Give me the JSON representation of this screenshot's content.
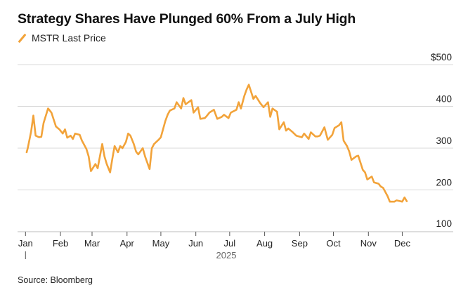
{
  "title": "Strategy Shares Have Plunged 60% From a July High",
  "source": "Source: Bloomberg",
  "colors": {
    "line": "#f2a33a",
    "grid": "#d9d9d9",
    "axis": "#555555"
  },
  "chart_data": {
    "type": "line",
    "title": "Strategy Shares Have Plunged 60% From a July High",
    "xlabel": "2025",
    "ylabel": "",
    "ylim": [
      100,
      500
    ],
    "y_ticks": [
      "$500",
      "400",
      "300",
      "200",
      "100"
    ],
    "y_tick_values": [
      500,
      400,
      300,
      200,
      100
    ],
    "x_tick_labels": [
      "Jan",
      "Feb",
      "Mar",
      "Apr",
      "May",
      "Jun",
      "Jul",
      "Aug",
      "Sep",
      "Oct",
      "Nov",
      "Dec"
    ],
    "x_year_label": "2025",
    "legend": "top-left",
    "grid": true,
    "series": [
      {
        "name": "MSTR Last Price",
        "color": "#f2a33a",
        "x": [
          "2025-01-02",
          "2025-01-03",
          "2025-01-06",
          "2025-01-08",
          "2025-01-10",
          "2025-01-13",
          "2025-01-15",
          "2025-01-17",
          "2025-01-21",
          "2025-01-22",
          "2025-01-24",
          "2025-01-28",
          "2025-01-31",
          "2025-02-03",
          "2025-02-05",
          "2025-02-07",
          "2025-02-10",
          "2025-02-12",
          "2025-02-14",
          "2025-02-18",
          "2025-02-20",
          "2025-02-24",
          "2025-02-26",
          "2025-02-28",
          "2025-03-04",
          "2025-03-06",
          "2025-03-10",
          "2025-03-12",
          "2025-03-14",
          "2025-03-17",
          "2025-03-19",
          "2025-03-21",
          "2025-03-24",
          "2025-03-26",
          "2025-03-28",
          "2025-03-31",
          "2025-04-02",
          "2025-04-04",
          "2025-04-07",
          "2025-04-09",
          "2025-04-11",
          "2025-04-15",
          "2025-04-17",
          "2025-04-21",
          "2025-04-23",
          "2025-04-25",
          "2025-04-29",
          "2025-05-01",
          "2025-05-05",
          "2025-05-07",
          "2025-05-09",
          "2025-05-13",
          "2025-05-15",
          "2025-05-19",
          "2025-05-21",
          "2025-05-23",
          "2025-05-28",
          "2025-05-30",
          "2025-06-03",
          "2025-06-05",
          "2025-06-09",
          "2025-06-11",
          "2025-06-13",
          "2025-06-17",
          "2025-06-20",
          "2025-06-24",
          "2025-06-26",
          "2025-06-30",
          "2025-07-02",
          "2025-07-07",
          "2025-07-09",
          "2025-07-11",
          "2025-07-14",
          "2025-07-16",
          "2025-07-18",
          "2025-07-22",
          "2025-07-24",
          "2025-07-28",
          "2025-07-31",
          "2025-08-04",
          "2025-08-06",
          "2025-08-08",
          "2025-08-12",
          "2025-08-14",
          "2025-08-18",
          "2025-08-20",
          "2025-08-22",
          "2025-08-26",
          "2025-08-29",
          "2025-09-03",
          "2025-09-05",
          "2025-09-09",
          "2025-09-11",
          "2025-09-15",
          "2025-09-17",
          "2025-09-19",
          "2025-09-23",
          "2025-09-26",
          "2025-09-30",
          "2025-10-02",
          "2025-10-06",
          "2025-10-08",
          "2025-10-10",
          "2025-10-13",
          "2025-10-15",
          "2025-10-17",
          "2025-10-21",
          "2025-10-23",
          "2025-10-27",
          "2025-10-29",
          "2025-10-31",
          "2025-11-04",
          "2025-11-06",
          "2025-11-10",
          "2025-11-12",
          "2025-11-14",
          "2025-11-18",
          "2025-11-20",
          "2025-11-24",
          "2025-11-26",
          "2025-12-01",
          "2025-12-03",
          "2025-12-05"
        ],
        "values": [
          290,
          300,
          340,
          378,
          330,
          326,
          327,
          360,
          395,
          392,
          385,
          352,
          345,
          335,
          345,
          325,
          330,
          322,
          335,
          332,
          318,
          298,
          280,
          245,
          262,
          252,
          310,
          280,
          262,
          242,
          275,
          305,
          290,
          305,
          300,
          315,
          335,
          330,
          310,
          292,
          285,
          300,
          280,
          250,
          300,
          310,
          320,
          326,
          365,
          380,
          390,
          395,
          410,
          395,
          420,
          405,
          415,
          385,
          398,
          370,
          372,
          378,
          385,
          392,
          370,
          375,
          380,
          372,
          385,
          392,
          410,
          395,
          425,
          440,
          452,
          418,
          425,
          408,
          398,
          410,
          375,
          395,
          387,
          345,
          362,
          342,
          347,
          338,
          330,
          326,
          335,
          322,
          338,
          328,
          328,
          330,
          350,
          320,
          332,
          348,
          355,
          362,
          318,
          305,
          292,
          272,
          280,
          282,
          248,
          242,
          225,
          232,
          218,
          215,
          208,
          205,
          185,
          172,
          172,
          175,
          172,
          182,
          173
        ]
      }
    ]
  }
}
